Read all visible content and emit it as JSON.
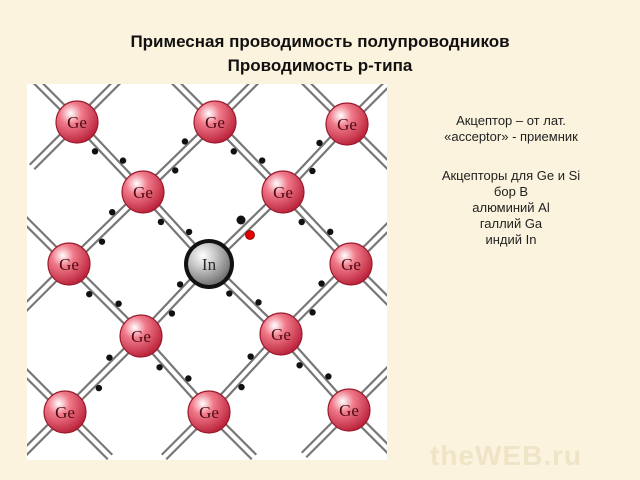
{
  "slide": {
    "title": "Примесная проводимость полупроводников",
    "subtitle": "Проводимость р-типа"
  },
  "lattice": {
    "host_atom": "Ge",
    "impurity_atom": "In",
    "host_color": "#d63a4e",
    "impurity_color": "#8c8c8c",
    "hole_color": "#e60000"
  },
  "info": {
    "acceptor_def_line1": "Акцептор – от лат.",
    "acceptor_def_line2": "«acceptor» - приемник",
    "list_header_line1": "Акцепторы для Ge и Si",
    "items": [
      "бор  В",
      "алюминий  Al",
      "галлий  Ga",
      "индий  In"
    ]
  },
  "watermark": "theWEB.ru"
}
